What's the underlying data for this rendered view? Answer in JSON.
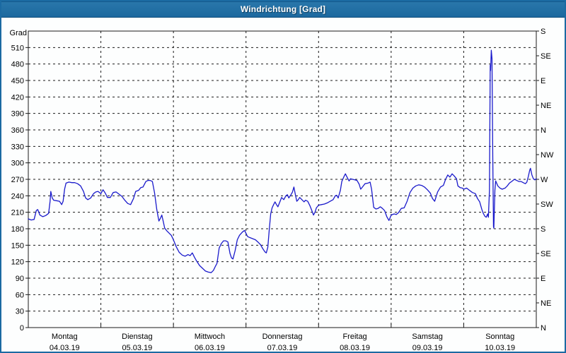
{
  "window": {
    "title": "Windrichtung [Grad]"
  },
  "colors": {
    "titlebar": "#1f6da4",
    "panel_border": "#1b6aa2",
    "plot_bg": "#fdfefe",
    "frame": "#1a1a1a",
    "grid": "#1a1a1a",
    "line": "#1a1acb",
    "text": "#000000"
  },
  "chart_data": {
    "type": "line",
    "title": "Windrichtung [Grad]",
    "ylabel": "Grad",
    "xlabel": "",
    "ylim": [
      0,
      540
    ],
    "xlim": [
      0,
      7
    ],
    "grid": true,
    "y_left_ticks": [
      0,
      30,
      60,
      90,
      120,
      150,
      180,
      210,
      240,
      270,
      300,
      330,
      360,
      390,
      420,
      450,
      480,
      510
    ],
    "y_right_ticks": [
      {
        "deg": 0,
        "label": "N"
      },
      {
        "deg": 45,
        "label": "NE"
      },
      {
        "deg": 90,
        "label": "E"
      },
      {
        "deg": 135,
        "label": "SE"
      },
      {
        "deg": 180,
        "label": "S"
      },
      {
        "deg": 225,
        "label": "SW"
      },
      {
        "deg": 270,
        "label": "W"
      },
      {
        "deg": 315,
        "label": "NW"
      },
      {
        "deg": 360,
        "label": "N"
      },
      {
        "deg": 405,
        "label": "NE"
      },
      {
        "deg": 450,
        "label": "E"
      },
      {
        "deg": 495,
        "label": "SE"
      },
      {
        "deg": 540,
        "label": "S"
      }
    ],
    "x_days": [
      {
        "name": "Montag",
        "date": "04.03.19"
      },
      {
        "name": "Dienstag",
        "date": "05.03.19"
      },
      {
        "name": "Mittwoch",
        "date": "06.03.19"
      },
      {
        "name": "Donnerstag",
        "date": "07.03.19"
      },
      {
        "name": "Freitag",
        "date": "08.03.19"
      },
      {
        "name": "Samstag",
        "date": "09.03.19"
      },
      {
        "name": "Sonntag",
        "date": "10.03.19"
      }
    ],
    "series": [
      {
        "name": "Windrichtung",
        "color": "#1a1acb",
        "points": [
          [
            0.0,
            198
          ],
          [
            0.04,
            196
          ],
          [
            0.08,
            197
          ],
          [
            0.11,
            213
          ],
          [
            0.13,
            215
          ],
          [
            0.16,
            205
          ],
          [
            0.2,
            202
          ],
          [
            0.24,
            204
          ],
          [
            0.28,
            208
          ],
          [
            0.3,
            230
          ],
          [
            0.31,
            248
          ],
          [
            0.33,
            236
          ],
          [
            0.35,
            232
          ],
          [
            0.39,
            231
          ],
          [
            0.43,
            230
          ],
          [
            0.46,
            224
          ],
          [
            0.48,
            230
          ],
          [
            0.5,
            252
          ],
          [
            0.52,
            263
          ],
          [
            0.56,
            265
          ],
          [
            0.6,
            264
          ],
          [
            0.64,
            264
          ],
          [
            0.68,
            262
          ],
          [
            0.72,
            258
          ],
          [
            0.76,
            248
          ],
          [
            0.79,
            236
          ],
          [
            0.82,
            233
          ],
          [
            0.86,
            236
          ],
          [
            0.9,
            244
          ],
          [
            0.93,
            247
          ],
          [
            0.96,
            248
          ],
          [
            1.0,
            244
          ],
          [
            1.03,
            251
          ],
          [
            1.06,
            245
          ],
          [
            1.09,
            237
          ],
          [
            1.13,
            237
          ],
          [
            1.17,
            246
          ],
          [
            1.21,
            247
          ],
          [
            1.25,
            243
          ],
          [
            1.29,
            239
          ],
          [
            1.33,
            232
          ],
          [
            1.37,
            226
          ],
          [
            1.41,
            224
          ],
          [
            1.45,
            235
          ],
          [
            1.48,
            248
          ],
          [
            1.52,
            250
          ],
          [
            1.55,
            255
          ],
          [
            1.58,
            256
          ],
          [
            1.62,
            266
          ],
          [
            1.65,
            268
          ],
          [
            1.68,
            268
          ],
          [
            1.71,
            266
          ],
          [
            1.74,
            245
          ],
          [
            1.77,
            215
          ],
          [
            1.79,
            201
          ],
          [
            1.8,
            194
          ],
          [
            1.82,
            199
          ],
          [
            1.84,
            205
          ],
          [
            1.86,
            193
          ],
          [
            1.88,
            181
          ],
          [
            1.91,
            176
          ],
          [
            1.94,
            172
          ],
          [
            1.97,
            168
          ],
          [
            2.0,
            160
          ],
          [
            2.04,
            147
          ],
          [
            2.08,
            137
          ],
          [
            2.12,
            132
          ],
          [
            2.16,
            130
          ],
          [
            2.2,
            133
          ],
          [
            2.23,
            131
          ],
          [
            2.26,
            136
          ],
          [
            2.29,
            128
          ],
          [
            2.32,
            121
          ],
          [
            2.36,
            113
          ],
          [
            2.4,
            108
          ],
          [
            2.44,
            103
          ],
          [
            2.48,
            101
          ],
          [
            2.52,
            100
          ],
          [
            2.55,
            104
          ],
          [
            2.58,
            112
          ],
          [
            2.6,
            117
          ],
          [
            2.63,
            145
          ],
          [
            2.66,
            153
          ],
          [
            2.69,
            158
          ],
          [
            2.72,
            158
          ],
          [
            2.75,
            156
          ],
          [
            2.78,
            135
          ],
          [
            2.8,
            127
          ],
          [
            2.82,
            125
          ],
          [
            2.85,
            140
          ],
          [
            2.88,
            160
          ],
          [
            2.91,
            168
          ],
          [
            2.95,
            174
          ],
          [
            2.98,
            177
          ],
          [
            3.02,
            166
          ],
          [
            3.05,
            164
          ],
          [
            3.09,
            162
          ],
          [
            3.13,
            160
          ],
          [
            3.17,
            155
          ],
          [
            3.2,
            151
          ],
          [
            3.23,
            144
          ],
          [
            3.26,
            138
          ],
          [
            3.28,
            136
          ],
          [
            3.3,
            146
          ],
          [
            3.32,
            177
          ],
          [
            3.34,
            207
          ],
          [
            3.36,
            218
          ],
          [
            3.38,
            224
          ],
          [
            3.4,
            229
          ],
          [
            3.42,
            224
          ],
          [
            3.44,
            220
          ],
          [
            3.47,
            230
          ],
          [
            3.49,
            237
          ],
          [
            3.52,
            233
          ],
          [
            3.55,
            240
          ],
          [
            3.57,
            242
          ],
          [
            3.59,
            236
          ],
          [
            3.62,
            242
          ],
          [
            3.64,
            247
          ],
          [
            3.66,
            256
          ],
          [
            3.68,
            242
          ],
          [
            3.7,
            230
          ],
          [
            3.72,
            233
          ],
          [
            3.74,
            237
          ],
          [
            3.77,
            233
          ],
          [
            3.8,
            229
          ],
          [
            3.82,
            232
          ],
          [
            3.85,
            230
          ],
          [
            3.88,
            222
          ],
          [
            3.91,
            212
          ],
          [
            3.93,
            205
          ],
          [
            3.95,
            210
          ],
          [
            3.97,
            218
          ],
          [
            4.0,
            223
          ],
          [
            4.04,
            224
          ],
          [
            4.08,
            225
          ],
          [
            4.12,
            227
          ],
          [
            4.16,
            230
          ],
          [
            4.2,
            233
          ],
          [
            4.23,
            240
          ],
          [
            4.25,
            241
          ],
          [
            4.27,
            236
          ],
          [
            4.3,
            250
          ],
          [
            4.32,
            266
          ],
          [
            4.35,
            275
          ],
          [
            4.37,
            280
          ],
          [
            4.4,
            272
          ],
          [
            4.42,
            267
          ],
          [
            4.44,
            271
          ],
          [
            4.47,
            270
          ],
          [
            4.5,
            269
          ],
          [
            4.53,
            268
          ],
          [
            4.56,
            261
          ],
          [
            4.58,
            252
          ],
          [
            4.61,
            257
          ],
          [
            4.64,
            262
          ],
          [
            4.68,
            263
          ],
          [
            4.71,
            265
          ],
          [
            4.73,
            252
          ],
          [
            4.76,
            219
          ],
          [
            4.79,
            216
          ],
          [
            4.82,
            217
          ],
          [
            4.85,
            220
          ],
          [
            4.88,
            217
          ],
          [
            4.91,
            213
          ],
          [
            4.94,
            202
          ],
          [
            4.97,
            195
          ],
          [
            5.0,
            205
          ],
          [
            5.04,
            207
          ],
          [
            5.07,
            206
          ],
          [
            5.1,
            209
          ],
          [
            5.14,
            217
          ],
          [
            5.18,
            218
          ],
          [
            5.22,
            230
          ],
          [
            5.26,
            246
          ],
          [
            5.3,
            254
          ],
          [
            5.34,
            258
          ],
          [
            5.38,
            260
          ],
          [
            5.42,
            259
          ],
          [
            5.46,
            256
          ],
          [
            5.5,
            251
          ],
          [
            5.54,
            245
          ],
          [
            5.57,
            235
          ],
          [
            5.6,
            230
          ],
          [
            5.64,
            247
          ],
          [
            5.68,
            256
          ],
          [
            5.72,
            259
          ],
          [
            5.75,
            270
          ],
          [
            5.78,
            278
          ],
          [
            5.81,
            274
          ],
          [
            5.84,
            280
          ],
          [
            5.87,
            276
          ],
          [
            5.9,
            271
          ],
          [
            5.92,
            258
          ],
          [
            5.95,
            255
          ],
          [
            5.98,
            254
          ],
          [
            6.0,
            252
          ],
          [
            6.04,
            254
          ],
          [
            6.08,
            250
          ],
          [
            6.12,
            246
          ],
          [
            6.16,
            244
          ],
          [
            6.19,
            235
          ],
          [
            6.22,
            229
          ],
          [
            6.25,
            215
          ],
          [
            6.27,
            208
          ],
          [
            6.29,
            203
          ],
          [
            6.31,
            201
          ],
          [
            6.33,
            207
          ],
          [
            6.34,
            201
          ],
          [
            6.355,
            250
          ],
          [
            6.365,
            478
          ],
          [
            6.37,
            468
          ],
          [
            6.38,
            505
          ],
          [
            6.39,
            490
          ],
          [
            6.4,
            310
          ],
          [
            6.41,
            184
          ],
          [
            6.415,
            181
          ],
          [
            6.43,
            250
          ],
          [
            6.44,
            267
          ],
          [
            6.47,
            258
          ],
          [
            6.5,
            254
          ],
          [
            6.53,
            252
          ],
          [
            6.57,
            254
          ],
          [
            6.6,
            258
          ],
          [
            6.63,
            263
          ],
          [
            6.66,
            266
          ],
          [
            6.7,
            270
          ],
          [
            6.73,
            268
          ],
          [
            6.76,
            266
          ],
          [
            6.79,
            266
          ],
          [
            6.82,
            264
          ],
          [
            6.85,
            262
          ],
          [
            6.87,
            265
          ],
          [
            6.89,
            275
          ],
          [
            6.91,
            287
          ],
          [
            6.92,
            290
          ],
          [
            6.94,
            278
          ],
          [
            6.96,
            271
          ],
          [
            6.98,
            269
          ],
          [
            7.0,
            271
          ]
        ]
      }
    ]
  }
}
